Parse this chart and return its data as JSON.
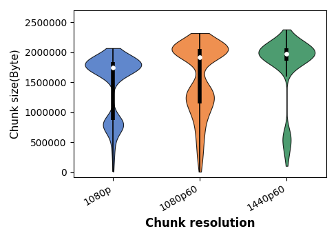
{
  "categories": [
    "1080p",
    "1080p60",
    "1440p60"
  ],
  "colors": [
    "#4472c4",
    "#ed7d31",
    "#2e8b57"
  ],
  "xlabel": "Chunk resolution",
  "ylabel": "Chunk size(Byte)",
  "ylim": [
    -80000,
    2700000
  ],
  "yticks": [
    0,
    500000,
    1000000,
    1500000,
    2000000,
    2500000
  ],
  "figsize": [
    4.89,
    3.48
  ],
  "dpi": 100
}
